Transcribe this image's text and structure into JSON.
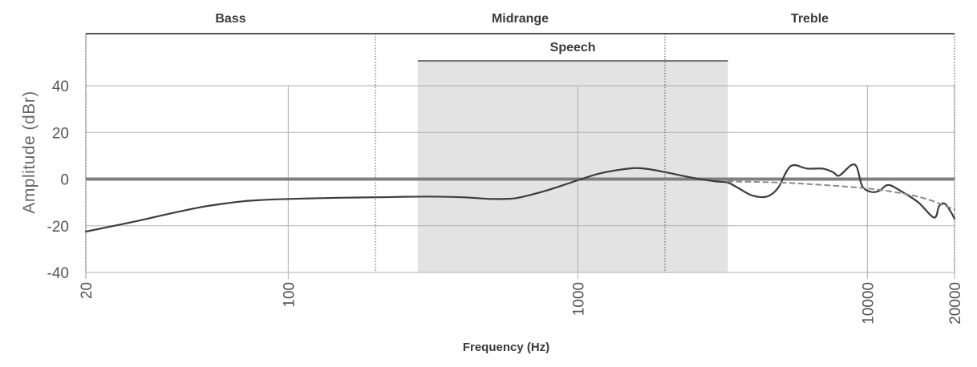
{
  "chart_data": {
    "type": "line",
    "x_scale": "log",
    "xlabel": "Frequency (Hz)",
    "ylabel": "Amplitude (dBr)",
    "xlim": [
      20,
      20000
    ],
    "ylim": [
      -40,
      40
    ],
    "grid": true,
    "x_ticks": [
      {
        "value": 20,
        "label": "20"
      },
      {
        "value": 100,
        "label": "100"
      },
      {
        "value": 1000,
        "label": "1000"
      },
      {
        "value": 10000,
        "label": "10000"
      },
      {
        "value": 20000,
        "label": "20000"
      }
    ],
    "y_ticks": [
      {
        "value": 40,
        "label": "40"
      },
      {
        "value": 20,
        "label": "20"
      },
      {
        "value": 0,
        "label": "0"
      },
      {
        "value": -20,
        "label": "-20"
      },
      {
        "value": -40,
        "label": "-40"
      }
    ],
    "regions": [
      {
        "label": "Bass",
        "from": 20,
        "to": 200
      },
      {
        "label": "Midrange",
        "from": 200,
        "to": 2000
      },
      {
        "label": "Treble",
        "from": 2000,
        "to": 20000
      }
    ],
    "highlight": {
      "label": "Speech",
      "from": 280,
      "to": 3300
    },
    "reference_level": 0,
    "series": [
      {
        "style": "solid",
        "color": "#3d3d3d",
        "points": [
          [
            20,
            -22.5
          ],
          [
            30,
            -18
          ],
          [
            40,
            -14.5
          ],
          [
            50,
            -12
          ],
          [
            60,
            -10.5
          ],
          [
            70,
            -9.5
          ],
          [
            80,
            -9
          ],
          [
            100,
            -8.5
          ],
          [
            150,
            -8
          ],
          [
            200,
            -7.8
          ],
          [
            300,
            -7.5
          ],
          [
            400,
            -7.8
          ],
          [
            500,
            -8.5
          ],
          [
            600,
            -8.3
          ],
          [
            700,
            -6.5
          ],
          [
            800,
            -4.5
          ],
          [
            1000,
            -0.5
          ],
          [
            1200,
            2.5
          ],
          [
            1500,
            4.5
          ],
          [
            1700,
            4.5
          ],
          [
            2000,
            3
          ],
          [
            2500,
            0.5
          ],
          [
            3000,
            -1
          ],
          [
            3300,
            -1.5
          ],
          [
            3600,
            -4
          ],
          [
            4000,
            -7
          ],
          [
            4500,
            -7.5
          ],
          [
            4900,
            -4
          ],
          [
            5300,
            4
          ],
          [
            5600,
            6
          ],
          [
            6200,
            4.5
          ],
          [
            7000,
            4.5
          ],
          [
            7600,
            3
          ],
          [
            8000,
            1.5
          ],
          [
            8800,
            6
          ],
          [
            9200,
            5
          ],
          [
            9600,
            -3
          ],
          [
            10300,
            -5.5
          ],
          [
            11000,
            -5
          ],
          [
            11800,
            -2.5
          ],
          [
            13000,
            -5
          ],
          [
            15000,
            -10
          ],
          [
            17000,
            -16.5
          ],
          [
            17700,
            -11.5
          ],
          [
            18500,
            -10.5
          ],
          [
            19300,
            -13.5
          ],
          [
            20000,
            -17
          ]
        ]
      },
      {
        "style": "dashed",
        "color": "#8c8c8c",
        "points": [
          [
            3300,
            -1
          ],
          [
            5000,
            -1.5
          ],
          [
            7000,
            -2.5
          ],
          [
            10000,
            -4
          ],
          [
            13000,
            -6
          ],
          [
            16000,
            -8.5
          ],
          [
            20000,
            -13
          ]
        ]
      }
    ]
  }
}
